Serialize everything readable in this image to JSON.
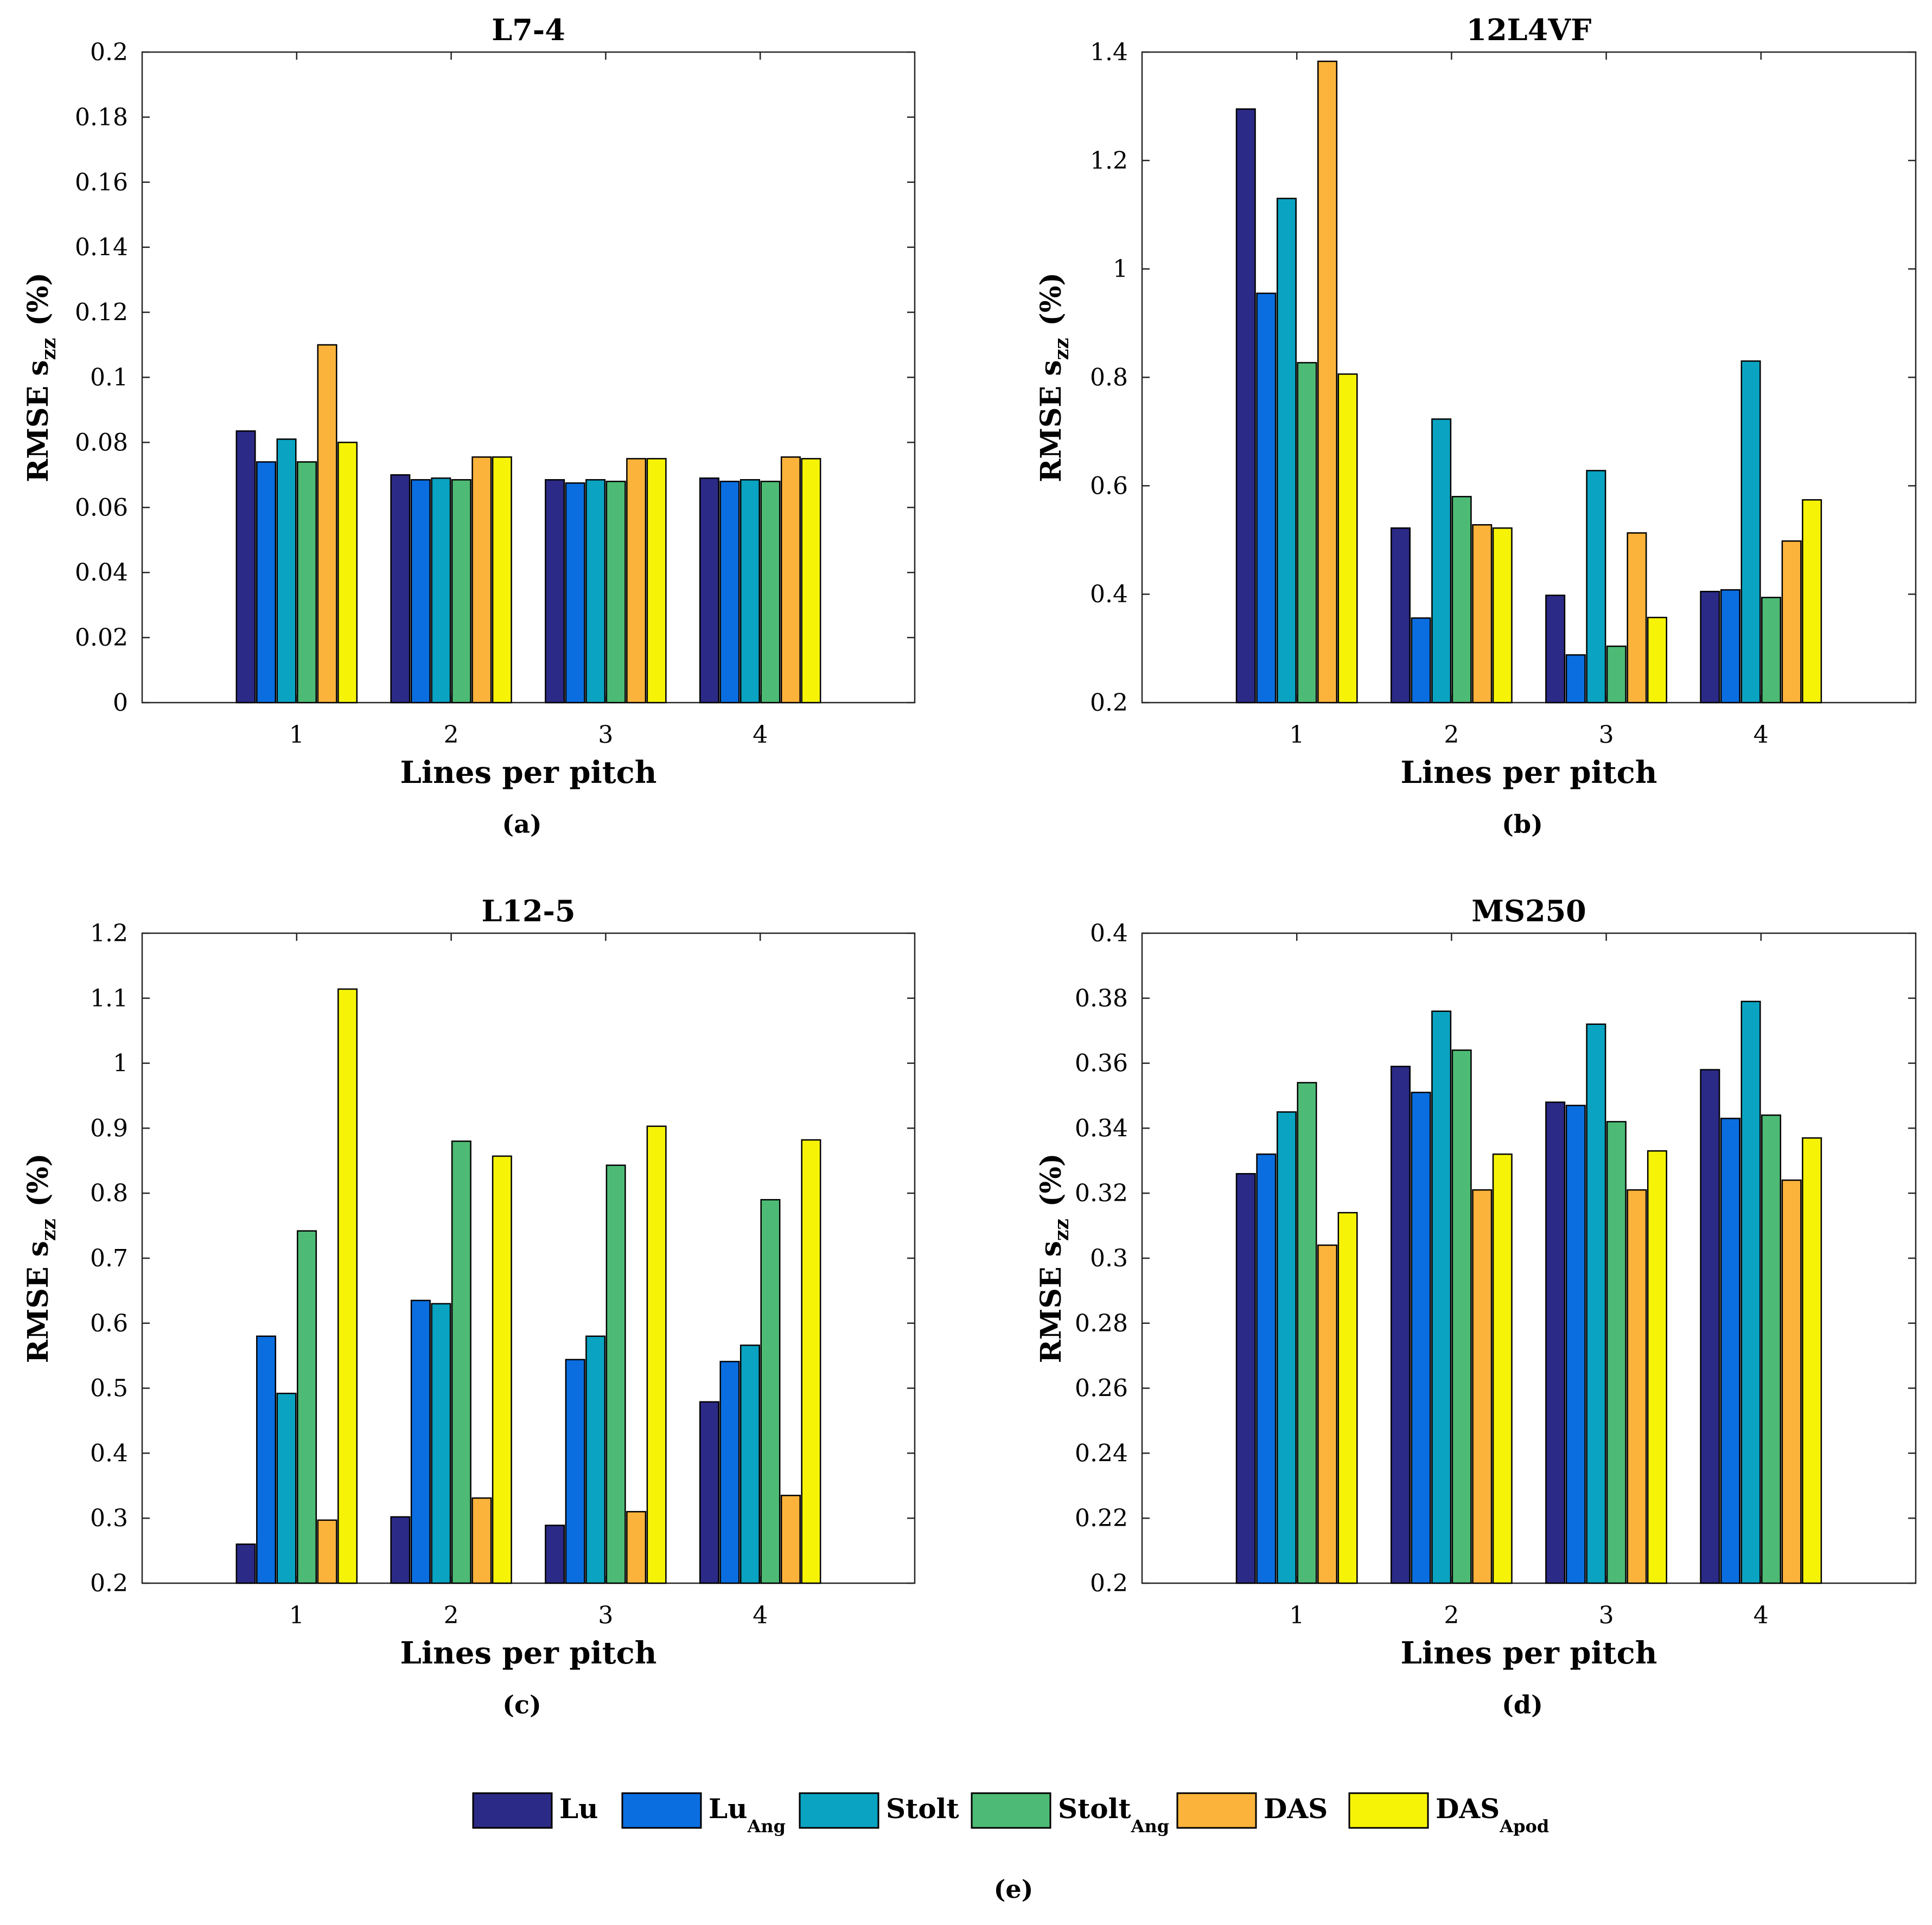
{
  "colors": {
    "Lu": "#2b2a86",
    "LuAng": "#0a6ee0",
    "Stolt": "#0aa3c2",
    "StoltAng": "#4dbb75",
    "DAS": "#fbb33b",
    "DASApod": "#f6f307"
  },
  "legend": [
    {
      "key": "Lu",
      "main": "Lu",
      "sub": ""
    },
    {
      "key": "LuAng",
      "main": "Lu",
      "sub": "Ang"
    },
    {
      "key": "Stolt",
      "main": "Stolt",
      "sub": ""
    },
    {
      "key": "StoltAng",
      "main": "Stolt",
      "sub": "Ang"
    },
    {
      "key": "DAS",
      "main": "DAS",
      "sub": ""
    },
    {
      "key": "DASApod",
      "main": "DAS",
      "sub": "Apod"
    }
  ],
  "legend_panel_label": "(e)",
  "chart_data": [
    {
      "type": "bar",
      "title": "L7-4",
      "panel_label": "(a)",
      "xlabel": "Lines per pitch",
      "ylabel": "RMSE s",
      "ylabel_sub": "zz",
      "ylabel_unit": "(%)",
      "categories": [
        "1",
        "2",
        "3",
        "4"
      ],
      "ylim": [
        0,
        0.2
      ],
      "yticks": [
        "0",
        "0.02",
        "0.04",
        "0.06",
        "0.08",
        "0.1",
        "0.12",
        "0.14",
        "0.16",
        "0.18",
        "0.2"
      ],
      "series": [
        {
          "name": "Lu",
          "key": "Lu",
          "values": [
            0.0835,
            0.07,
            0.0685,
            0.069
          ]
        },
        {
          "name": "LuAng",
          "key": "LuAng",
          "values": [
            0.074,
            0.0685,
            0.0675,
            0.068
          ]
        },
        {
          "name": "Stolt",
          "key": "Stolt",
          "values": [
            0.081,
            0.069,
            0.0685,
            0.0685
          ]
        },
        {
          "name": "StoltAng",
          "key": "StoltAng",
          "values": [
            0.074,
            0.0685,
            0.068,
            0.068
          ]
        },
        {
          "name": "DAS",
          "key": "DAS",
          "values": [
            0.11,
            0.0755,
            0.075,
            0.0755
          ]
        },
        {
          "name": "DASApod",
          "key": "DASApod",
          "values": [
            0.08,
            0.0755,
            0.075,
            0.075
          ]
        }
      ]
    },
    {
      "type": "bar",
      "title": "12L4VF",
      "panel_label": "(b)",
      "xlabel": "Lines per pitch",
      "ylabel": "RMSE s",
      "ylabel_sub": "zz",
      "ylabel_unit": "(%)",
      "categories": [
        "1",
        "2",
        "3",
        "4"
      ],
      "ylim": [
        0.2,
        1.4
      ],
      "yticks": [
        "0.2",
        "0.4",
        "0.6",
        "0.8",
        "1",
        "1.2",
        "1.4"
      ],
      "series": [
        {
          "name": "Lu",
          "key": "Lu",
          "values": [
            1.295,
            0.522,
            0.398,
            0.405
          ]
        },
        {
          "name": "LuAng",
          "key": "LuAng",
          "values": [
            0.955,
            0.356,
            0.288,
            0.408
          ]
        },
        {
          "name": "Stolt",
          "key": "Stolt",
          "values": [
            1.13,
            0.723,
            0.628,
            0.83
          ]
        },
        {
          "name": "StoltAng",
          "key": "StoltAng",
          "values": [
            0.827,
            0.58,
            0.304,
            0.394
          ]
        },
        {
          "name": "DAS",
          "key": "DAS",
          "values": [
            1.383,
            0.528,
            0.513,
            0.498
          ]
        },
        {
          "name": "DASApod",
          "key": "DASApod",
          "values": [
            0.806,
            0.522,
            0.357,
            0.574
          ]
        }
      ]
    },
    {
      "type": "bar",
      "title": "L12-5",
      "panel_label": "(c)",
      "xlabel": "Lines per pitch",
      "ylabel": "RMSE s",
      "ylabel_sub": "zz",
      "ylabel_unit": "(%)",
      "categories": [
        "1",
        "2",
        "3",
        "4"
      ],
      "ylim": [
        0.2,
        1.2
      ],
      "yticks": [
        "0.2",
        "0.3",
        "0.4",
        "0.5",
        "0.6",
        "0.7",
        "0.8",
        "0.9",
        "1",
        "1.1",
        "1.2"
      ],
      "series": [
        {
          "name": "Lu",
          "key": "Lu",
          "values": [
            0.26,
            0.302,
            0.289,
            0.479
          ]
        },
        {
          "name": "LuAng",
          "key": "LuAng",
          "values": [
            0.58,
            0.635,
            0.544,
            0.541
          ]
        },
        {
          "name": "Stolt",
          "key": "Stolt",
          "values": [
            0.492,
            0.63,
            0.58,
            0.566
          ]
        },
        {
          "name": "StoltAng",
          "key": "StoltAng",
          "values": [
            0.742,
            0.88,
            0.843,
            0.79
          ]
        },
        {
          "name": "DAS",
          "key": "DAS",
          "values": [
            0.297,
            0.331,
            0.31,
            0.335
          ]
        },
        {
          "name": "DASApod",
          "key": "DASApod",
          "values": [
            1.114,
            0.857,
            0.903,
            0.882
          ]
        }
      ]
    },
    {
      "type": "bar",
      "title": "MS250",
      "panel_label": "(d)",
      "xlabel": "Lines per pitch",
      "ylabel": "RMSE s",
      "ylabel_sub": "zz",
      "ylabel_unit": "(%)",
      "categories": [
        "1",
        "2",
        "3",
        "4"
      ],
      "ylim": [
        0.2,
        0.4
      ],
      "yticks": [
        "0.2",
        "0.22",
        "0.24",
        "0.26",
        "0.28",
        "0.3",
        "0.32",
        "0.34",
        "0.36",
        "0.38",
        "0.4"
      ],
      "series": [
        {
          "name": "Lu",
          "key": "Lu",
          "values": [
            0.326,
            0.359,
            0.348,
            0.358
          ]
        },
        {
          "name": "LuAng",
          "key": "LuAng",
          "values": [
            0.332,
            0.351,
            0.347,
            0.343
          ]
        },
        {
          "name": "Stolt",
          "key": "Stolt",
          "values": [
            0.345,
            0.376,
            0.372,
            0.379
          ]
        },
        {
          "name": "StoltAng",
          "key": "StoltAng",
          "values": [
            0.354,
            0.364,
            0.342,
            0.344
          ]
        },
        {
          "name": "DAS",
          "key": "DAS",
          "values": [
            0.304,
            0.321,
            0.321,
            0.324
          ]
        },
        {
          "name": "DASApod",
          "key": "DASApod",
          "values": [
            0.314,
            0.332,
            0.333,
            0.337
          ]
        }
      ]
    }
  ]
}
